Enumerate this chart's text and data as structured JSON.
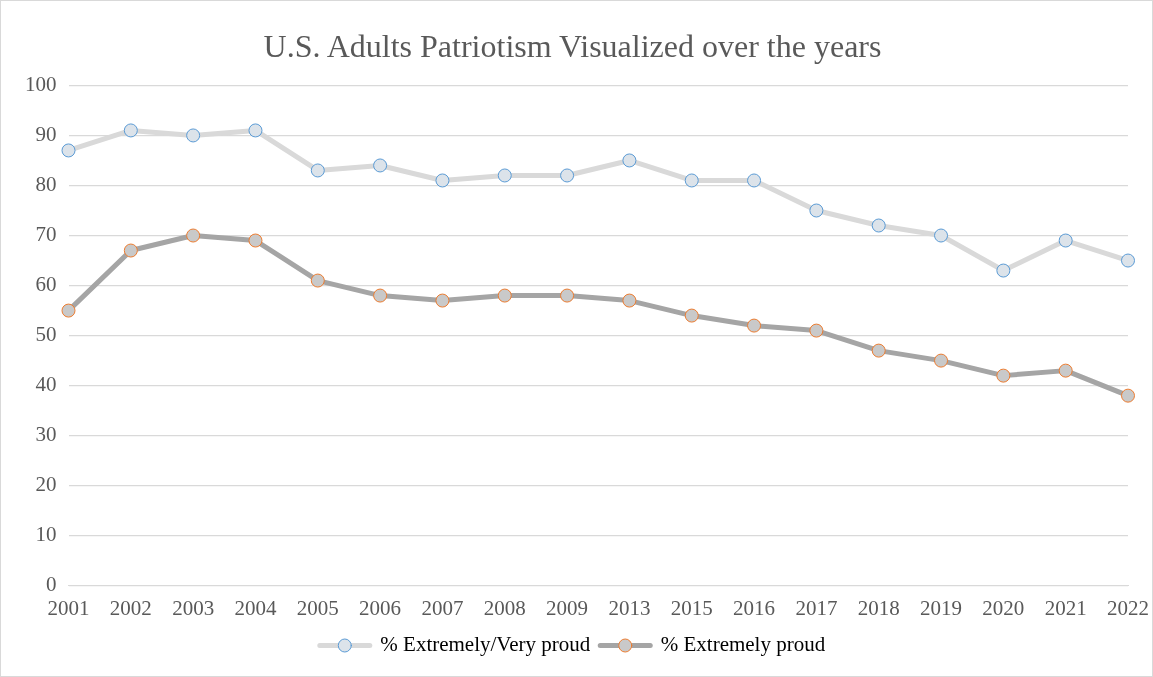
{
  "chart_data": {
    "type": "line",
    "title": "U.S. Adults Patriotism Visualized over the years",
    "categories": [
      "2001",
      "2002",
      "2003",
      "2004",
      "2005",
      "2006",
      "2007",
      "2008",
      "2009",
      "2013",
      "2015",
      "2016",
      "2017",
      "2018",
      "2019",
      "2020",
      "2021",
      "2022"
    ],
    "series": [
      {
        "name": "% Extremely/Very proud",
        "color": "#d9d9d9",
        "values": [
          87,
          91,
          90,
          91,
          83,
          84,
          81,
          82,
          82,
          85,
          81,
          81,
          75,
          72,
          70,
          63,
          69,
          65
        ]
      },
      {
        "name": "% Extremely proud",
        "color": "#a5a5a5",
        "values": [
          55,
          67,
          70,
          69,
          61,
          58,
          57,
          58,
          58,
          57,
          54,
          52,
          51,
          47,
          45,
          42,
          43,
          38
        ]
      }
    ],
    "ylim": [
      0,
      100
    ],
    "yticks": [
      0,
      10,
      20,
      30,
      40,
      50,
      60,
      70,
      80,
      90,
      100
    ],
    "grid": "y",
    "legend": "bottom",
    "marker": "circle"
  }
}
